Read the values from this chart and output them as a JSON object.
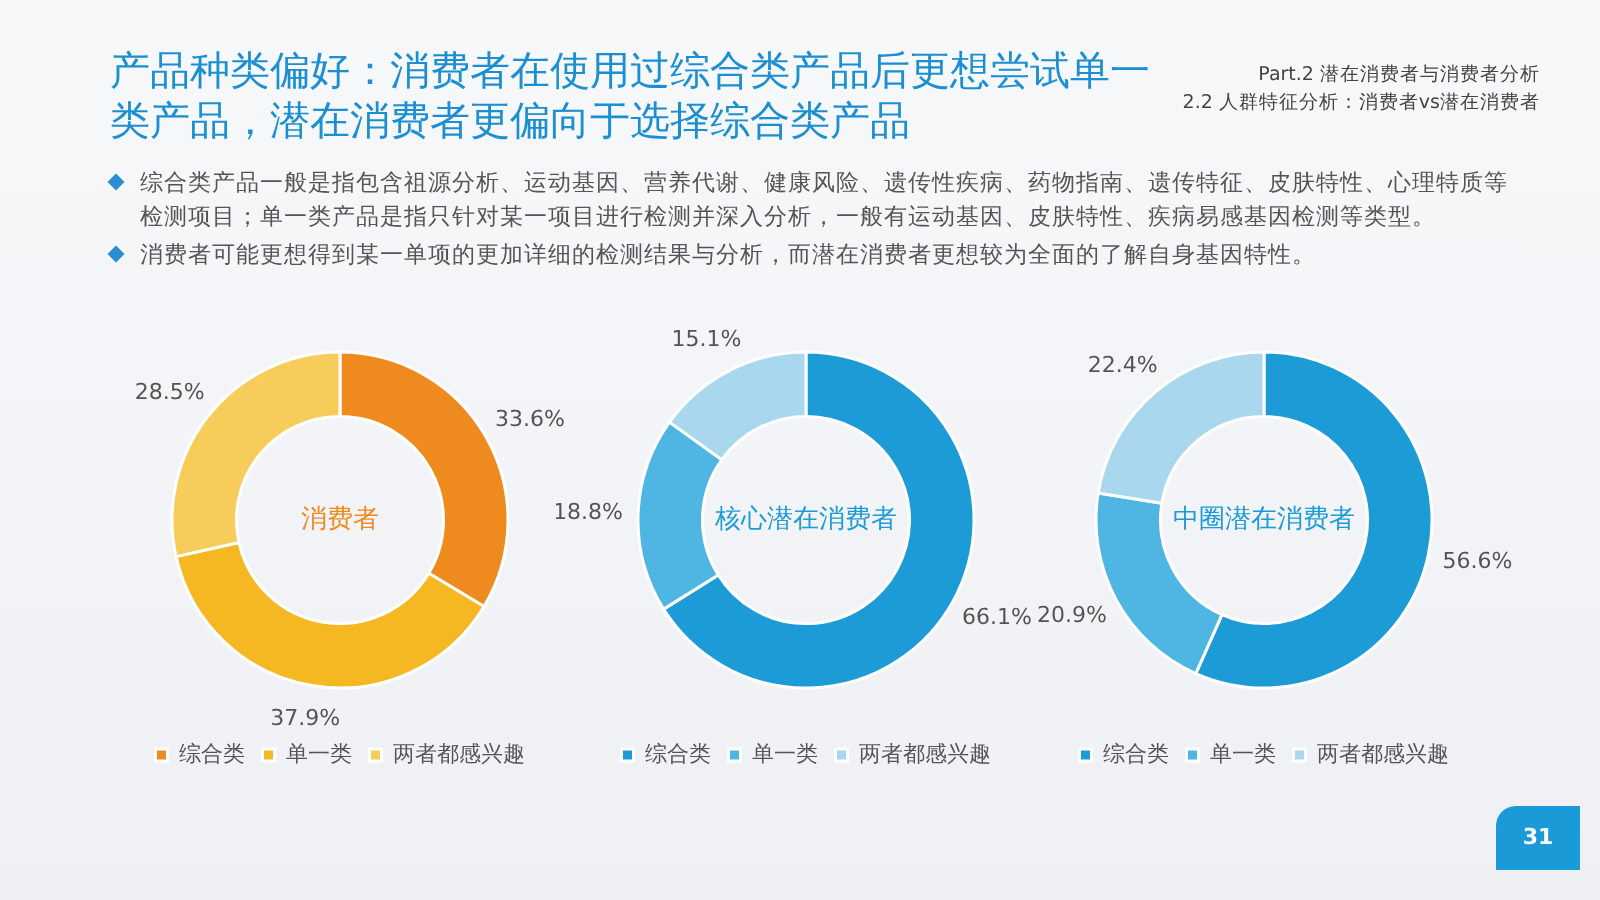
{
  "chart_data": [
    {
      "type": "donut",
      "title": "消费者",
      "categories": [
        "综合类",
        "单一类",
        "两者都感兴趣"
      ],
      "values": [
        33.6,
        37.9,
        28.5
      ],
      "value_labels": [
        "33.6%",
        "37.9%",
        "28.5%"
      ],
      "colors": [
        "#ef8a1f",
        "#f5b722",
        "#f6cd5a"
      ],
      "legend": "bottom",
      "annotations": [
        "产品种类偏好：消费者在使用过综合类产品后更想尝试单一类产品，潜在消费者更偏向于选择综合类产品",
        "Part.2 潜在消费者与消费者分析",
        "2.2 人群特征分析：消费者vs潜在消费者",
        "综合类产品一般是指包含祖源分析、运动基因、营养代谢、健康风险、遗传性疾病、药物指南、遗传特征、皮肤特性、心理特质等检测项目；单一类产品是指只针对某一项目进行检测并深入分析，一般有运动基因、皮肤特性、疾病易感基因检测等类型。",
        "消费者可能更想得到某一单项的更加详细的检测结果与分析，而潜在消费者更想较为全面的了解自身基因特性。",
        "31"
      ]
    },
    {
      "type": "donut",
      "title": "核心潜在消费者",
      "categories": [
        "综合类",
        "单一类",
        "两者都感兴趣"
      ],
      "values": [
        66.1,
        18.8,
        15.1
      ],
      "value_labels": [
        "66.1%",
        "18.8%",
        "15.1%"
      ],
      "colors": [
        "#1c9bd7",
        "#4fb5e2",
        "#a9d7ee"
      ],
      "legend": "bottom"
    },
    {
      "type": "donut",
      "title": "中圈潜在消费者",
      "categories": [
        "综合类",
        "单一类",
        "两者都感兴趣"
      ],
      "values": [
        56.6,
        20.9,
        22.4
      ],
      "value_labels": [
        "56.6%",
        "20.9%",
        "22.4%"
      ],
      "colors": [
        "#1c9bd7",
        "#4fb5e2",
        "#a9d7ee"
      ],
      "legend": "bottom"
    }
  ]
}
